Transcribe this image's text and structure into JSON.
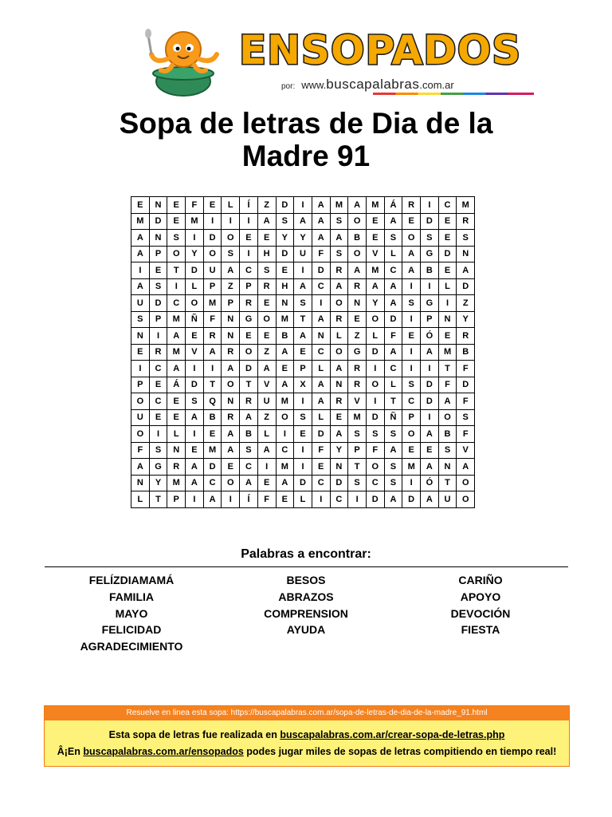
{
  "header": {
    "brand": "ENSOPADOS",
    "byline_prefix": "por:",
    "byline_www": "www.",
    "byline_name": "buscapalabras",
    "byline_tld": ".com.ar"
  },
  "title_lines": [
    "Sopa de letras de Dia de la",
    "Madre 91"
  ],
  "grid": [
    [
      "E",
      "N",
      "E",
      "F",
      "E",
      "L",
      "Í",
      "Z",
      "D",
      "I",
      "A",
      "M",
      "A",
      "M",
      "Á",
      "R",
      "I",
      "C",
      "M"
    ],
    [
      "M",
      "D",
      "E",
      "M",
      "I",
      "I",
      "I",
      "A",
      "S",
      "A",
      "A",
      "S",
      "O",
      "E",
      "A",
      "E",
      "D",
      "E",
      "R"
    ],
    [
      "A",
      "N",
      "S",
      "I",
      "D",
      "O",
      "E",
      "E",
      "Y",
      "Y",
      "A",
      "A",
      "B",
      "E",
      "S",
      "O",
      "S",
      "E",
      "S"
    ],
    [
      "A",
      "P",
      "O",
      "Y",
      "O",
      "S",
      "I",
      "H",
      "D",
      "U",
      "F",
      "S",
      "O",
      "V",
      "L",
      "A",
      "G",
      "D",
      "N"
    ],
    [
      "I",
      "E",
      "T",
      "D",
      "U",
      "A",
      "C",
      "S",
      "E",
      "I",
      "D",
      "R",
      "A",
      "M",
      "C",
      "A",
      "B",
      "E",
      "A"
    ],
    [
      "A",
      "S",
      "I",
      "L",
      "P",
      "Z",
      "P",
      "R",
      "H",
      "A",
      "C",
      "A",
      "R",
      "A",
      "A",
      "I",
      "I",
      "L",
      "D"
    ],
    [
      "U",
      "D",
      "C",
      "O",
      "M",
      "P",
      "R",
      "E",
      "N",
      "S",
      "I",
      "O",
      "N",
      "Y",
      "A",
      "S",
      "G",
      "I",
      "Z"
    ],
    [
      "S",
      "P",
      "M",
      "Ñ",
      "F",
      "N",
      "G",
      "O",
      "M",
      "T",
      "A",
      "R",
      "E",
      "O",
      "D",
      "I",
      "P",
      "N",
      "Y"
    ],
    [
      "N",
      "I",
      "A",
      "E",
      "R",
      "N",
      "E",
      "E",
      "B",
      "A",
      "N",
      "L",
      "Z",
      "L",
      "F",
      "E",
      "Ó",
      "E",
      "R"
    ],
    [
      "E",
      "R",
      "M",
      "V",
      "A",
      "R",
      "O",
      "Z",
      "A",
      "E",
      "C",
      "O",
      "G",
      "D",
      "A",
      "I",
      "A",
      "M",
      "B"
    ],
    [
      "I",
      "C",
      "A",
      "I",
      "I",
      "A",
      "D",
      "A",
      "E",
      "P",
      "L",
      "A",
      "R",
      "I",
      "C",
      "I",
      "I",
      "T",
      "F"
    ],
    [
      "P",
      "E",
      "Á",
      "D",
      "T",
      "O",
      "T",
      "V",
      "A",
      "X",
      "A",
      "N",
      "R",
      "O",
      "L",
      "S",
      "D",
      "F",
      "D"
    ],
    [
      "O",
      "C",
      "E",
      "S",
      "Q",
      "N",
      "R",
      "U",
      "M",
      "I",
      "A",
      "R",
      "V",
      "I",
      "T",
      "C",
      "D",
      "A",
      "F"
    ],
    [
      "U",
      "E",
      "E",
      "A",
      "B",
      "R",
      "A",
      "Z",
      "O",
      "S",
      "L",
      "E",
      "M",
      "D",
      "Ñ",
      "P",
      "I",
      "O",
      "S"
    ],
    [
      "O",
      "I",
      "L",
      "I",
      "E",
      "A",
      "B",
      "L",
      "I",
      "E",
      "D",
      "A",
      "S",
      "S",
      "S",
      "O",
      "A",
      "B",
      "F"
    ],
    [
      "F",
      "S",
      "N",
      "E",
      "M",
      "A",
      "S",
      "A",
      "C",
      "I",
      "F",
      "Y",
      "P",
      "F",
      "A",
      "E",
      "E",
      "S",
      "V"
    ],
    [
      "A",
      "G",
      "R",
      "A",
      "D",
      "E",
      "C",
      "I",
      "M",
      "I",
      "E",
      "N",
      "T",
      "O",
      "S",
      "M",
      "A",
      "N",
      "A"
    ],
    [
      "N",
      "Y",
      "M",
      "A",
      "C",
      "O",
      "A",
      "E",
      "A",
      "D",
      "C",
      "D",
      "S",
      "C",
      "S",
      "I",
      "Ó",
      "T",
      "O"
    ],
    [
      "L",
      "T",
      "P",
      "I",
      "A",
      "I",
      "Í",
      "F",
      "E",
      "L",
      "I",
      "C",
      "I",
      "D",
      "A",
      "D",
      "A",
      "U",
      "O"
    ]
  ],
  "words_heading": "Palabras a encontrar:",
  "word_columns": [
    [
      "FELÍZDIAMAMÁ",
      "FAMILIA",
      "MAYO",
      "FELICIDAD",
      "AGRADECIMIENTO"
    ],
    [
      "BESOS",
      "ABRAZOS",
      "COMPRENSION",
      "AYUDA"
    ],
    [
      "CARIÑO",
      "APOYO",
      "DEVOCIÓN",
      "FIESTA"
    ]
  ],
  "footer": {
    "online_text": "Resuelve en linea esta sopa: https://buscapalabras.com.ar/sopa-de-letras-de-dia-de-la-madre_91.html",
    "line1_prefix": "Esta sopa de letras fue realizada en ",
    "line1_link": "buscapalabras.com.ar/crear-sopa-de-letras.php",
    "line2_prefix": "Â¡En ",
    "line2_link": "buscapalabras.com.ar/ensopados",
    "line2_suffix": " podes jugar miles de sopas de letras compitiendo en tiempo real!"
  },
  "colors": {
    "brand": "#f5a800",
    "footer_bar": "#f5821f",
    "footer_body": "#fff27a"
  },
  "icons": [
    "octopus-mascot-icon"
  ]
}
